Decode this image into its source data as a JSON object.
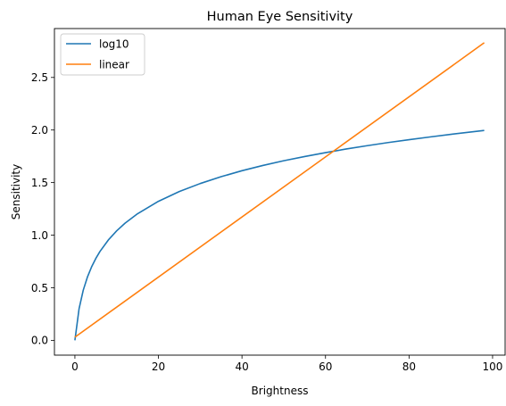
{
  "chart_data": {
    "type": "line",
    "title": "Human Eye Sensitivity",
    "xlabel": "Brightness",
    "ylabel": "Sensitivity",
    "xlim": [
      -4.9,
      103
    ],
    "ylim": [
      -0.141,
      2.965
    ],
    "xticks": [
      0,
      20,
      40,
      60,
      80,
      100
    ],
    "xtick_labels": [
      "0",
      "20",
      "40",
      "60",
      "80",
      "100"
    ],
    "yticks": [
      0.0,
      0.5,
      1.0,
      1.5,
      2.0,
      2.5
    ],
    "ytick_labels": [
      "0.0",
      "0.5",
      "1.0",
      "1.5",
      "2.0",
      "2.5"
    ],
    "grid": false,
    "legend_position": "top-left",
    "series": [
      {
        "name": "log10",
        "color": "#1f77b4",
        "x": [
          0,
          1,
          2,
          3,
          4,
          5,
          6,
          8,
          10,
          12,
          15,
          20,
          25,
          30,
          35,
          40,
          45,
          50,
          55,
          60,
          65,
          70,
          75,
          80,
          85,
          90,
          95,
          98
        ],
        "y": [
          0.0,
          0.301,
          0.477,
          0.602,
          0.699,
          0.778,
          0.845,
          0.954,
          1.041,
          1.114,
          1.204,
          1.322,
          1.415,
          1.491,
          1.556,
          1.613,
          1.663,
          1.708,
          1.748,
          1.785,
          1.82,
          1.851,
          1.881,
          1.908,
          1.934,
          1.959,
          1.982,
          1.996
        ]
      },
      {
        "name": "linear",
        "color": "#ff7f0e",
        "x": [
          0,
          98
        ],
        "y": [
          0.03,
          2.83
        ]
      }
    ]
  }
}
